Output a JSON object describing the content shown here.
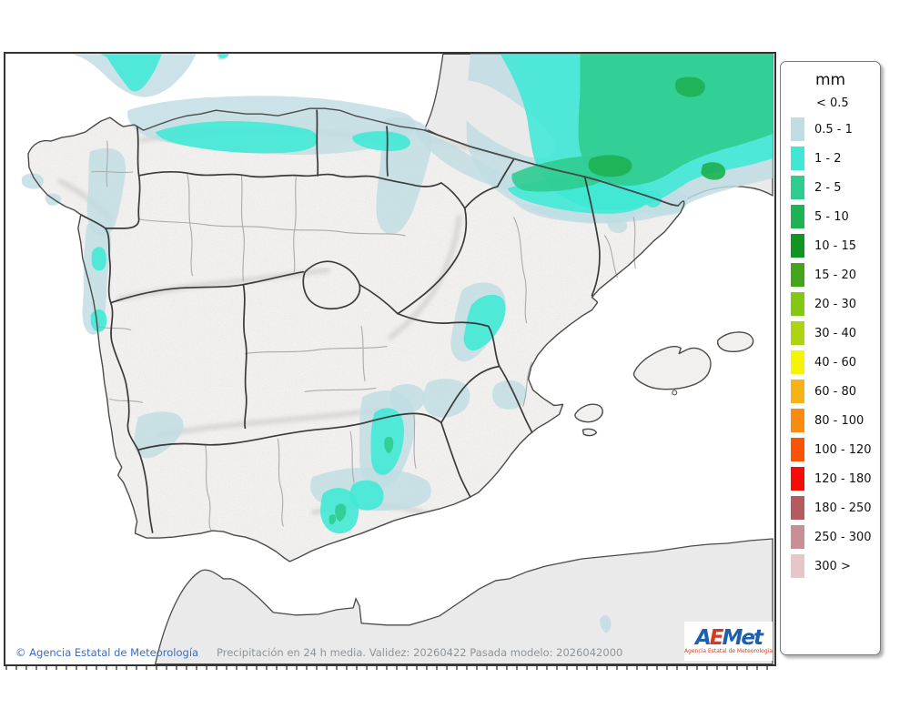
{
  "legend": {
    "title": "mm",
    "first_label": "< 0.5",
    "items": [
      {
        "label": "0.5 - 1",
        "color": "#c0dde3"
      },
      {
        "label": "1 - 2",
        "color": "#3fe8d5"
      },
      {
        "label": "2 - 5",
        "color": "#2fcc90"
      },
      {
        "label": "5 - 10",
        "color": "#1db254"
      },
      {
        "label": "10 - 15",
        "color": "#0f9522"
      },
      {
        "label": "15 - 20",
        "color": "#44a51d"
      },
      {
        "label": "20 - 30",
        "color": "#85c813"
      },
      {
        "label": "30 - 40",
        "color": "#aed411"
      },
      {
        "label": "40 - 60",
        "color": "#f5f502"
      },
      {
        "label": "60 - 80",
        "color": "#f7b315"
      },
      {
        "label": "80 - 100",
        "color": "#f98c10"
      },
      {
        "label": "100 - 120",
        "color": "#fa5306"
      },
      {
        "label": "120 - 180",
        "color": "#f70b07"
      },
      {
        "label": "180 - 250",
        "color": "#b55a5e"
      },
      {
        "label": "250 - 300",
        "color": "#c98f96"
      },
      {
        "label": "300 >",
        "color": "#e7c6ca"
      }
    ]
  },
  "footer": {
    "copyright": "© Agencia Estatal de Meteorología",
    "caption": "Precipitación en 24 h media. Validez: 20260422 Pasada modelo: 2026042000"
  },
  "logo": {
    "letters": [
      {
        "ch": "A",
        "color": "#1d5fb0"
      },
      {
        "ch": "E",
        "color": "#d03b24"
      },
      {
        "ch": "M",
        "color": "#1d5fb0"
      },
      {
        "ch": "e",
        "color": "#1d5fb0"
      },
      {
        "ch": "t",
        "color": "#1d5fb0"
      }
    ],
    "subtitle": "Agencia Estatal de Meteorología"
  },
  "colors": {
    "sea": "#ffffff",
    "land_flat": "#eaeaea",
    "terrain": "#f1f0ee",
    "coast": "#4a4a4a",
    "border_dark": "#3a3a3a",
    "border_light": "#ababab",
    "p_05_1": "#c0dde3",
    "p_1_2": "#3fe8d5",
    "p_2_5": "#2fcc90",
    "p_5_10": "#1db254",
    "copyright_blue": "#3a6ec0",
    "caption_gray": "#8d9499",
    "logo_red": "#cf3b23"
  }
}
